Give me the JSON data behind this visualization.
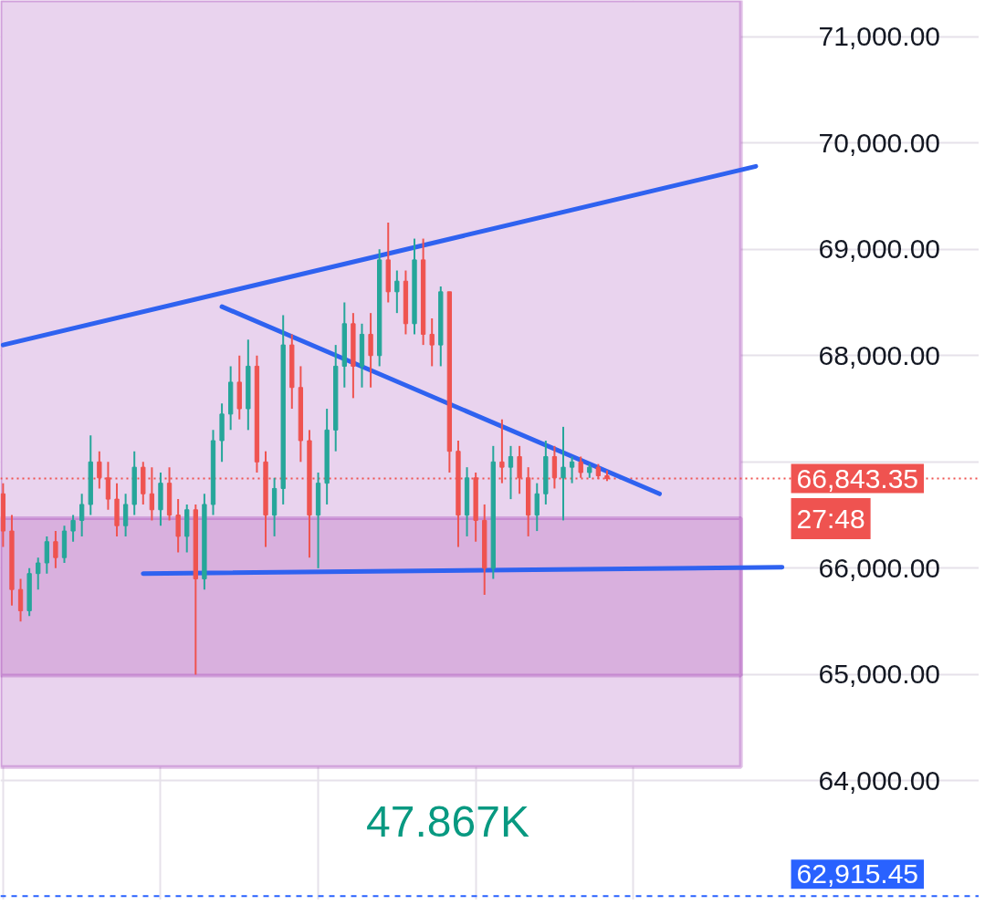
{
  "chart_data": {
    "type": "candlestick",
    "categories": [
      null,
      null,
      null,
      null,
      null,
      null,
      null,
      null,
      null,
      null,
      null,
      null,
      null,
      null,
      null,
      null,
      null,
      null,
      null,
      null,
      null,
      null,
      null,
      null,
      null,
      null,
      null,
      null,
      null,
      null,
      null,
      null,
      null,
      null,
      null,
      null,
      null,
      null,
      null,
      null,
      null,
      null,
      null,
      null,
      null,
      null,
      null,
      null,
      null,
      null,
      null,
      null,
      null,
      null,
      null,
      null,
      null,
      null,
      null,
      null,
      null,
      null,
      null,
      null,
      null,
      null,
      null,
      null,
      null,
      null,
      null,
      null,
      null,
      null,
      null,
      null,
      null,
      null,
      null,
      null,
      null,
      null,
      null,
      null,
      null,
      null,
      null,
      null,
      null,
      null
    ],
    "ohlc": [
      [
        66700,
        66800,
        66200,
        66350
      ],
      [
        66350,
        66500,
        65650,
        65800
      ],
      [
        65800,
        65900,
        65500,
        65600
      ],
      [
        65600,
        66000,
        65550,
        65950
      ],
      [
        65950,
        66100,
        65800,
        66050
      ],
      [
        66050,
        66300,
        65950,
        66250
      ],
      [
        66250,
        66350,
        66000,
        66100
      ],
      [
        66100,
        66400,
        66050,
        66350
      ],
      [
        66350,
        66500,
        66250,
        66450
      ],
      [
        66450,
        66700,
        66300,
        66600
      ],
      [
        66600,
        67250,
        66500,
        67000
      ],
      [
        67000,
        67100,
        66750,
        66850
      ],
      [
        66850,
        67000,
        66550,
        66650
      ],
      [
        66650,
        66800,
        66300,
        66400
      ],
      [
        66400,
        66700,
        66300,
        66600
      ],
      [
        66600,
        67100,
        66500,
        66950
      ],
      [
        66950,
        67000,
        66600,
        66700
      ],
      [
        66700,
        66950,
        66450,
        66550
      ],
      [
        66550,
        66900,
        66400,
        66800
      ],
      [
        66800,
        66950,
        66450,
        66500
      ],
      [
        66500,
        66650,
        66150,
        66300
      ],
      [
        66300,
        66600,
        66150,
        66550
      ],
      [
        66550,
        66600,
        65000,
        65900
      ],
      [
        65900,
        66700,
        65800,
        66600
      ],
      [
        66600,
        67300,
        66500,
        67200
      ],
      [
        67200,
        67550,
        67000,
        67450
      ],
      [
        67450,
        67900,
        67300,
        67750
      ],
      [
        67750,
        68000,
        67400,
        67500
      ],
      [
        67500,
        68150,
        67300,
        67900
      ],
      [
        67900,
        68000,
        66900,
        67000
      ],
      [
        67000,
        67100,
        66200,
        66500
      ],
      [
        66500,
        66850,
        66300,
        66750
      ],
      [
        66750,
        68380,
        66600,
        68100
      ],
      [
        68100,
        68200,
        67500,
        67700
      ],
      [
        67700,
        67900,
        67000,
        67200
      ],
      [
        67200,
        67300,
        66100,
        66500
      ],
      [
        66500,
        66900,
        66000,
        66800
      ],
      [
        66800,
        67500,
        66600,
        67300
      ],
      [
        67300,
        68100,
        67100,
        67900
      ],
      [
        67900,
        68500,
        67700,
        68300
      ],
      [
        68300,
        68400,
        67600,
        67900
      ],
      [
        67900,
        68300,
        67700,
        68200
      ],
      [
        68200,
        68400,
        67700,
        68000
      ],
      [
        68000,
        69000,
        67900,
        68900
      ],
      [
        68900,
        69250,
        68500,
        68600
      ],
      [
        68600,
        68800,
        68400,
        68700
      ],
      [
        68700,
        68800,
        68200,
        68300
      ],
      [
        68300,
        69100,
        68200,
        68900
      ],
      [
        68900,
        69100,
        68100,
        68200
      ],
      [
        68200,
        68350,
        67900,
        68100
      ],
      [
        68100,
        68650,
        67900,
        68600
      ],
      [
        68600,
        68600,
        66900,
        67100
      ],
      [
        67100,
        67200,
        66200,
        66500
      ],
      [
        66500,
        66950,
        66300,
        66850
      ],
      [
        66850,
        66900,
        66250,
        66450
      ],
      [
        66450,
        66600,
        65750,
        66000
      ],
      [
        66000,
        67150,
        65900,
        67000
      ],
      [
        67000,
        67400,
        66800,
        66950
      ],
      [
        66950,
        67150,
        66650,
        67050
      ],
      [
        67050,
        67150,
        66700,
        66850
      ],
      [
        66850,
        66950,
        66300,
        66500
      ],
      [
        66500,
        66800,
        66350,
        66700
      ],
      [
        66700,
        67200,
        66600,
        67050
      ],
      [
        67050,
        67150,
        66750,
        66850
      ],
      [
        66850,
        67330,
        66450,
        66950
      ],
      [
        66950,
        67050,
        66800,
        67000
      ],
      [
        67000,
        67050,
        66850,
        66900
      ],
      [
        66900,
        66980,
        66850,
        66950
      ],
      [
        66950,
        66980,
        66840,
        66870
      ],
      [
        66870,
        66920,
        66820,
        66843.35
      ],
      null,
      null,
      null,
      null,
      null,
      null,
      null,
      null,
      null,
      null,
      null,
      null,
      null,
      null,
      null,
      null,
      null,
      null,
      null,
      null
    ],
    "series": [
      {
        "type": "line",
        "color": "#2f62f0",
        "values": [
          68100,
          null,
          null,
          null,
          null,
          null,
          null,
          null,
          null,
          null,
          null,
          null,
          null,
          null,
          null,
          null,
          null,
          null,
          null,
          null,
          null,
          null,
          null,
          null,
          null,
          null,
          null,
          null,
          null,
          null,
          null,
          null,
          null,
          null,
          null,
          null,
          null,
          null,
          null,
          null,
          null,
          null,
          null,
          null,
          null,
          null,
          null,
          null,
          null,
          null,
          null,
          null,
          null,
          null,
          null,
          null,
          null,
          null,
          null,
          null,
          null,
          null,
          null,
          null,
          null,
          null,
          null,
          null,
          null,
          null,
          null,
          null,
          null,
          null,
          null,
          null,
          null,
          null,
          null,
          null,
          null,
          null,
          null,
          null,
          null,
          null,
          69780,
          null,
          null,
          null
        ]
      },
      {
        "type": "line",
        "color": "#2f62f0",
        "values": [
          null,
          null,
          null,
          null,
          null,
          null,
          null,
          null,
          null,
          null,
          null,
          null,
          null,
          null,
          null,
          null,
          null,
          null,
          null,
          null,
          null,
          null,
          null,
          null,
          null,
          68460,
          null,
          null,
          null,
          null,
          null,
          null,
          null,
          null,
          null,
          null,
          null,
          null,
          null,
          null,
          null,
          null,
          null,
          null,
          null,
          null,
          null,
          null,
          null,
          null,
          null,
          null,
          null,
          null,
          null,
          null,
          null,
          null,
          null,
          null,
          null,
          null,
          null,
          null,
          null,
          null,
          null,
          null,
          null,
          null,
          null,
          null,
          null,
          null,
          null,
          66700,
          null,
          null,
          null,
          null,
          null,
          null,
          null,
          null,
          null,
          null,
          null,
          null,
          null,
          null
        ]
      },
      {
        "type": "line",
        "color": "#2f62f0",
        "values": [
          null,
          null,
          null,
          null,
          null,
          null,
          null,
          null,
          null,
          null,
          null,
          null,
          null,
          null,
          null,
          null,
          65950,
          null,
          null,
          null,
          null,
          null,
          null,
          null,
          null,
          null,
          null,
          null,
          null,
          null,
          null,
          null,
          null,
          null,
          null,
          null,
          null,
          null,
          null,
          null,
          null,
          null,
          null,
          null,
          null,
          null,
          null,
          null,
          null,
          null,
          null,
          null,
          null,
          null,
          null,
          null,
          null,
          null,
          null,
          null,
          null,
          null,
          null,
          null,
          null,
          null,
          null,
          null,
          null,
          null,
          null,
          null,
          null,
          null,
          null,
          null,
          null,
          null,
          null,
          null,
          null,
          null,
          null,
          null,
          null,
          null,
          null,
          null,
          null,
          66010
        ]
      }
    ],
    "ylim": [
      62880,
      71340
    ],
    "yticks": [
      {
        "value": 64000,
        "label": "64,000.00"
      },
      {
        "value": 65000,
        "label": "65,000.00"
      },
      {
        "value": 66000,
        "label": "66,000.00"
      },
      {
        "value": 67000,
        "label": null
      },
      {
        "value": 68000,
        "label": "68,000.00"
      },
      {
        "value": 69000,
        "label": "69,000.00"
      },
      {
        "value": 70000,
        "label": "70,000.00"
      },
      {
        "value": 71000,
        "label": "71,000.00"
      }
    ],
    "bands": [
      {
        "axis": "y",
        "from": 64130,
        "to": 71340,
        "color": "#e9d3ee"
      },
      {
        "axis": "y",
        "from": 64990,
        "to": 66470,
        "color": "#d9b0de"
      }
    ],
    "ref_lines": [
      {
        "axis": "y",
        "value": 66843.35,
        "label": "66,843.35",
        "color": "#ef5350",
        "line_style": "dotted"
      },
      {
        "axis": "y",
        "value": 62915.45,
        "label": "62,915.45",
        "color": "#2962ff",
        "line_style": "dashed"
      }
    ],
    "annotations": [
      "27:48",
      "47.867K"
    ],
    "grid": true,
    "tick_labels": "y"
  }
}
